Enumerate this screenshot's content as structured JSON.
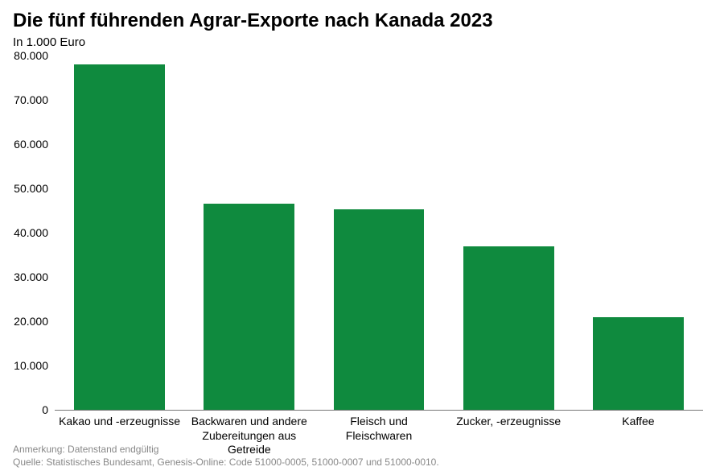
{
  "chart": {
    "type": "bar",
    "title": "Die fünf führenden Agrar-Exporte nach Kanada 2023",
    "subtitle": "In 1.000 Euro",
    "title_fontsize": 24,
    "subtitle_fontsize": 15,
    "label_fontsize": 14,
    "background_color": "#ffffff",
    "bar_color": "#0f8a3e",
    "axis_color": "#777777",
    "text_color": "#000000",
    "footer_color": "#888888",
    "ylim": [
      0,
      80000
    ],
    "ytick_step": 10000,
    "yticks": [
      {
        "value": 0,
        "label": "0"
      },
      {
        "value": 10000,
        "label": "10.000"
      },
      {
        "value": 20000,
        "label": "20.000"
      },
      {
        "value": 30000,
        "label": "30.000"
      },
      {
        "value": 40000,
        "label": "40.000"
      },
      {
        "value": 50000,
        "label": "50.000"
      },
      {
        "value": 60000,
        "label": "60.000"
      },
      {
        "value": 70000,
        "label": "70.000"
      },
      {
        "value": 80000,
        "label": "80.000"
      }
    ],
    "categories": [
      "Kakao und -erzeugnisse",
      "Backwaren und andere Zubereitungen aus Getreide",
      "Fleisch und Fleischwaren",
      "Zucker, -erzeugnisse",
      "Kaffee"
    ],
    "values": [
      78000,
      46500,
      45200,
      37000,
      21000
    ],
    "bar_width": 0.7,
    "note": "Anmerkung: Datenstand endgültig",
    "source": "Quelle: Statistisches Bundesamt, Genesis-Online: Code 51000-0005, 51000-0007 und 51000-0010."
  }
}
